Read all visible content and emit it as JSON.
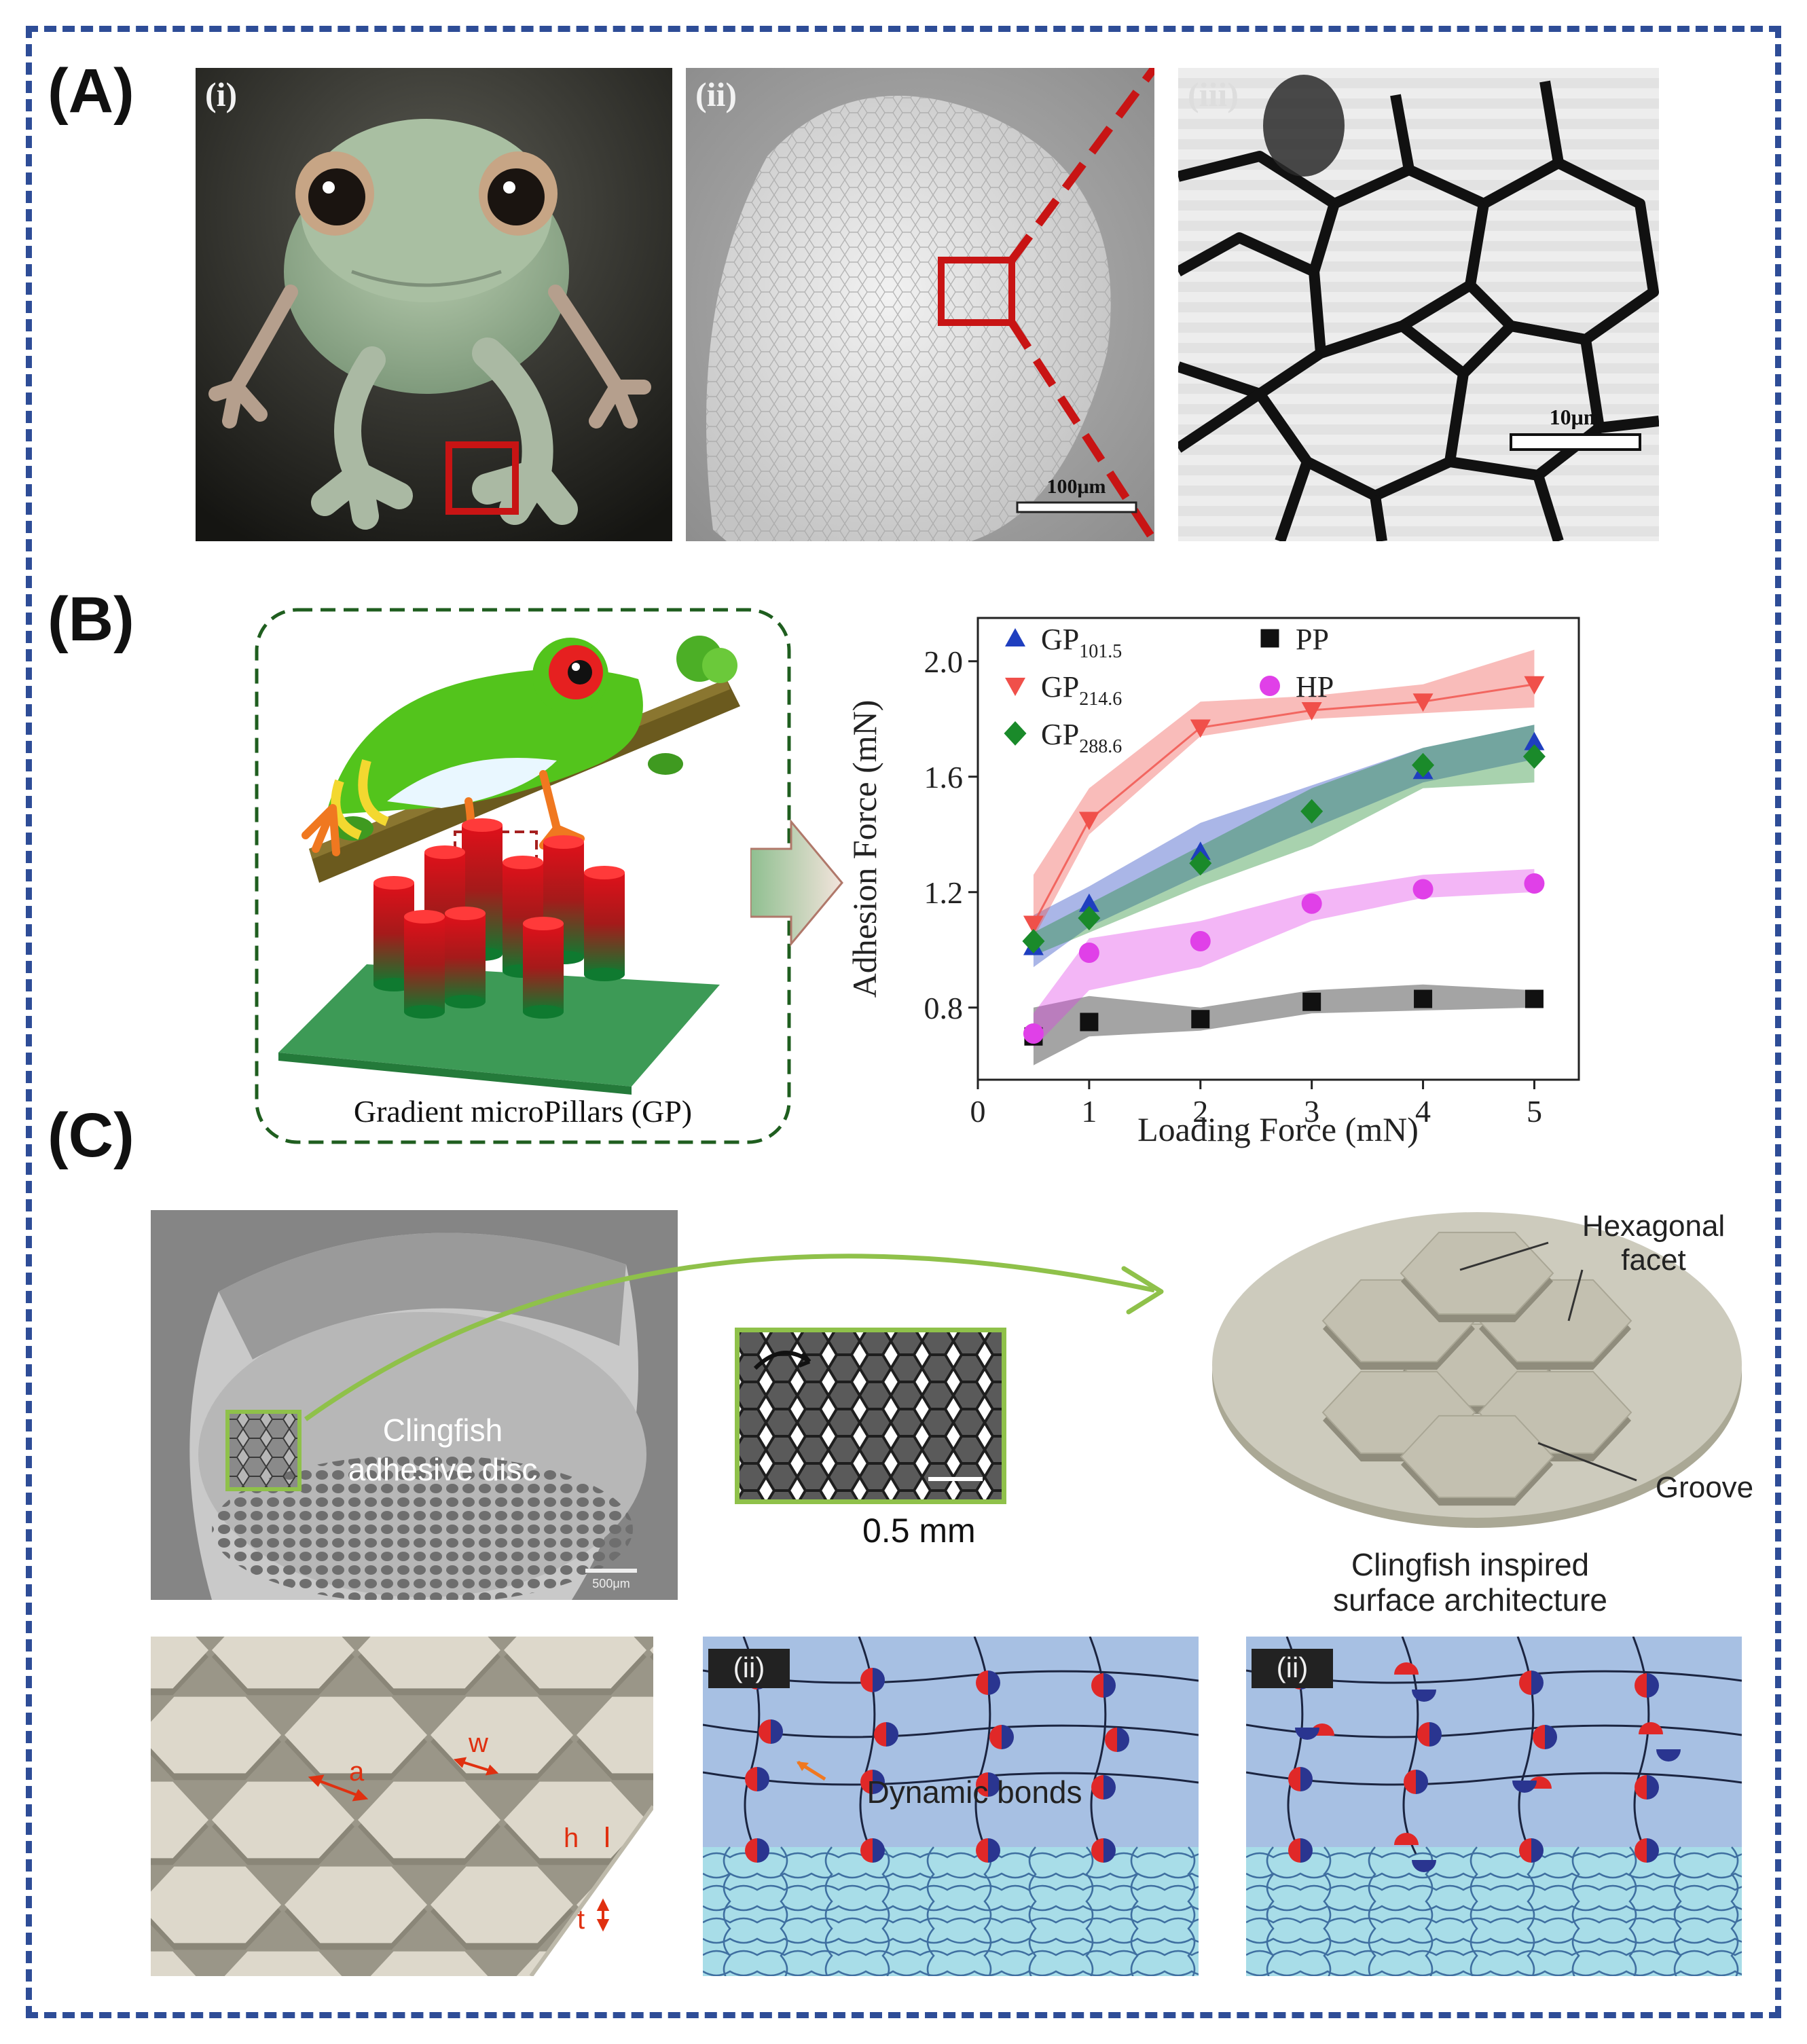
{
  "panel_labels": {
    "a": "(A)",
    "b": "(B)",
    "c": "(C)"
  },
  "panel_a": {
    "sub1": "(i)",
    "sub2": "(ii)",
    "sub3": "(iii)",
    "scale2": "100μm",
    "scale3": "10μm"
  },
  "panel_b": {
    "schematic_caption": "Gradient microPillars (GP)"
  },
  "panel_c": {
    "disc_label_1": "Clingfish",
    "disc_label_2": "adhesive disc",
    "sem_scale": "500μm",
    "zoom_scale": "0.5 mm",
    "hex_label_1": "Hexagonal",
    "hex_label_2": "facet",
    "groove_label": "Groove",
    "arch_caption_1": "Clingfish inspired",
    "arch_caption_2": "surface architecture",
    "dim_a": "a",
    "dim_w": "w",
    "dim_h": "h",
    "dim_t": "t",
    "bond_sub1": "(ii)",
    "bond_sub2": "(ii)",
    "bond_label": "Dynamic bonds"
  },
  "colors": {
    "frame": "#2e4d97",
    "gp101": "#1f3fbf",
    "gp214": "#f0504a",
    "gp288": "#1a8a2a",
    "pp": "#111111",
    "hp": "#e040e8"
  },
  "chart_data": {
    "type": "scatter",
    "xlabel": "Loading Force (mN)",
    "ylabel": "Adhesion Force (mN)",
    "xlim": [
      0,
      5.4
    ],
    "ylim": [
      0.55,
      2.15
    ],
    "xticks": [
      0,
      1,
      2,
      3,
      4,
      5
    ],
    "yticks": [
      0.8,
      1.2,
      1.6,
      2.0
    ],
    "legend_placement": "top-left",
    "series": [
      {
        "name": "GP",
        "sub": "101.5",
        "marker": "triangle-up",
        "color": "#1f3fbf",
        "x": [
          0.5,
          1,
          2,
          4,
          5
        ],
        "y": [
          1.01,
          1.16,
          1.34,
          1.62,
          1.72
        ],
        "band_low": [
          0.94,
          1.08,
          1.26,
          1.58,
          1.66
        ],
        "band_high": [
          1.12,
          1.22,
          1.44,
          1.7,
          1.78
        ]
      },
      {
        "name": "GP",
        "sub": "214.6",
        "marker": "triangle-down",
        "color": "#f0504a",
        "x": [
          0.5,
          1,
          2,
          3,
          4,
          5
        ],
        "y": [
          1.09,
          1.45,
          1.77,
          1.83,
          1.86,
          1.92
        ],
        "band_low": [
          1.04,
          1.4,
          1.74,
          1.8,
          1.82,
          1.84
        ],
        "band_high": [
          1.26,
          1.56,
          1.86,
          1.88,
          1.92,
          2.04
        ]
      },
      {
        "name": "GP",
        "sub": "288.6",
        "marker": "diamond",
        "color": "#1a8a2a",
        "x": [
          0.5,
          1,
          2,
          3,
          4,
          5
        ],
        "y": [
          1.03,
          1.11,
          1.3,
          1.48,
          1.64,
          1.67
        ],
        "band_low": [
          0.98,
          1.06,
          1.22,
          1.36,
          1.56,
          1.58
        ],
        "band_high": [
          1.06,
          1.16,
          1.36,
          1.56,
          1.7,
          1.78
        ]
      },
      {
        "name": "PP",
        "sub": "",
        "marker": "square",
        "color": "#111111",
        "x": [
          0.5,
          1,
          2,
          3,
          4,
          5
        ],
        "y": [
          0.7,
          0.75,
          0.76,
          0.82,
          0.83,
          0.83
        ],
        "band_low": [
          0.6,
          0.7,
          0.72,
          0.78,
          0.79,
          0.8
        ],
        "band_high": [
          0.8,
          0.84,
          0.8,
          0.86,
          0.88,
          0.86
        ]
      },
      {
        "name": "HP",
        "sub": "",
        "marker": "circle",
        "color": "#e040e8",
        "x": [
          0.5,
          1,
          2,
          3,
          4,
          5
        ],
        "y": [
          0.71,
          0.99,
          1.03,
          1.16,
          1.21,
          1.23
        ],
        "band_low": [
          0.66,
          0.86,
          0.94,
          1.1,
          1.18,
          1.2
        ],
        "band_high": [
          0.78,
          1.04,
          1.1,
          1.2,
          1.26,
          1.28
        ]
      }
    ]
  }
}
